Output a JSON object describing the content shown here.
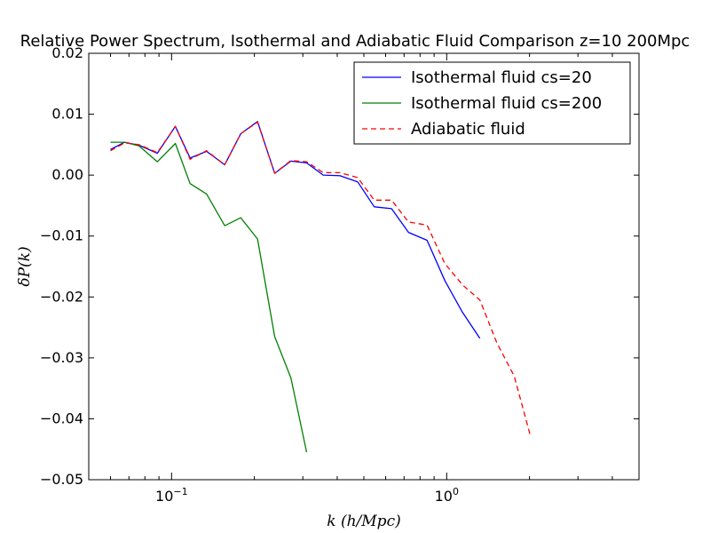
{
  "chart_data": {
    "type": "line",
    "title": "Relative Power Spectrum, Isothermal and Adiabatic Fluid Comparison z=10 200Mpc",
    "xlabel": "k (h/Mpc)",
    "ylabel": "δP(k)",
    "xscale": "log",
    "xlim": [
      0.05,
      5
    ],
    "ylim": [
      -0.05,
      0.02
    ],
    "yticks": [
      0.02,
      0.01,
      0.0,
      -0.01,
      -0.02,
      -0.03,
      -0.04,
      -0.05
    ],
    "ytick_labels": [
      "0.02",
      "0.01",
      "0.00",
      "−0.01",
      "−0.02",
      "−0.03",
      "−0.04",
      "−0.05"
    ],
    "xticks": [
      {
        "value": 0.1,
        "base": "10",
        "exp": "−1"
      },
      {
        "value": 1,
        "base": "10",
        "exp": "0"
      }
    ],
    "grid": false,
    "legend_position": "top-right",
    "series": [
      {
        "name": "Isothermal fluid cs=20",
        "color": "#0000ff",
        "dash": "solid",
        "x": [
          0.06,
          0.0675,
          0.0762,
          0.0888,
          0.1032,
          0.1168,
          0.1341,
          0.156,
          0.1785,
          0.2053,
          0.237,
          0.2716,
          0.3096,
          0.3559,
          0.4092,
          0.4745,
          0.5454,
          0.6304,
          0.7265,
          0.8482,
          0.9846,
          1.14,
          1.32
        ],
        "y": [
          0.0042,
          0.0054,
          0.0049,
          0.0036,
          0.008,
          0.0028,
          0.0039,
          0.0017,
          0.0068,
          0.0088,
          0.0003,
          0.0023,
          0.002,
          0.0,
          -0.0001,
          -0.0011,
          -0.0052,
          -0.0055,
          -0.0094,
          -0.0107,
          -0.0173,
          -0.0225,
          -0.0268
        ]
      },
      {
        "name": "Isothermal fluid cs=200",
        "color": "#008000",
        "dash": "solid",
        "x": [
          0.06,
          0.0675,
          0.0762,
          0.0888,
          0.1032,
          0.1168,
          0.1341,
          0.156,
          0.1785,
          0.2053,
          0.237,
          0.2716,
          0.3096
        ],
        "y": [
          0.0054,
          0.0054,
          0.0048,
          0.0022,
          0.0052,
          -0.0014,
          -0.0031,
          -0.0083,
          -0.007,
          -0.0105,
          -0.0265,
          -0.0333,
          -0.0455
        ]
      },
      {
        "name": "Adiabatic fluid",
        "color": "#ff0000",
        "dash": "dashed",
        "x": [
          0.06,
          0.0675,
          0.0762,
          0.0888,
          0.1032,
          0.1168,
          0.1341,
          0.156,
          0.1785,
          0.2053,
          0.237,
          0.2716,
          0.3096,
          0.3559,
          0.4092,
          0.4745,
          0.5454,
          0.6304,
          0.7265,
          0.8482,
          0.9846,
          1.14,
          1.32,
          1.52,
          1.76,
          2.02
        ],
        "y": [
          0.004,
          0.0053,
          0.005,
          0.0037,
          0.008,
          0.0026,
          0.004,
          0.0017,
          0.0068,
          0.0087,
          0.0003,
          0.0024,
          0.0022,
          0.0004,
          0.0004,
          -0.0004,
          -0.0041,
          -0.0041,
          -0.0077,
          -0.0082,
          -0.0145,
          -0.018,
          -0.0205,
          -0.0275,
          -0.033,
          -0.043
        ]
      }
    ]
  }
}
